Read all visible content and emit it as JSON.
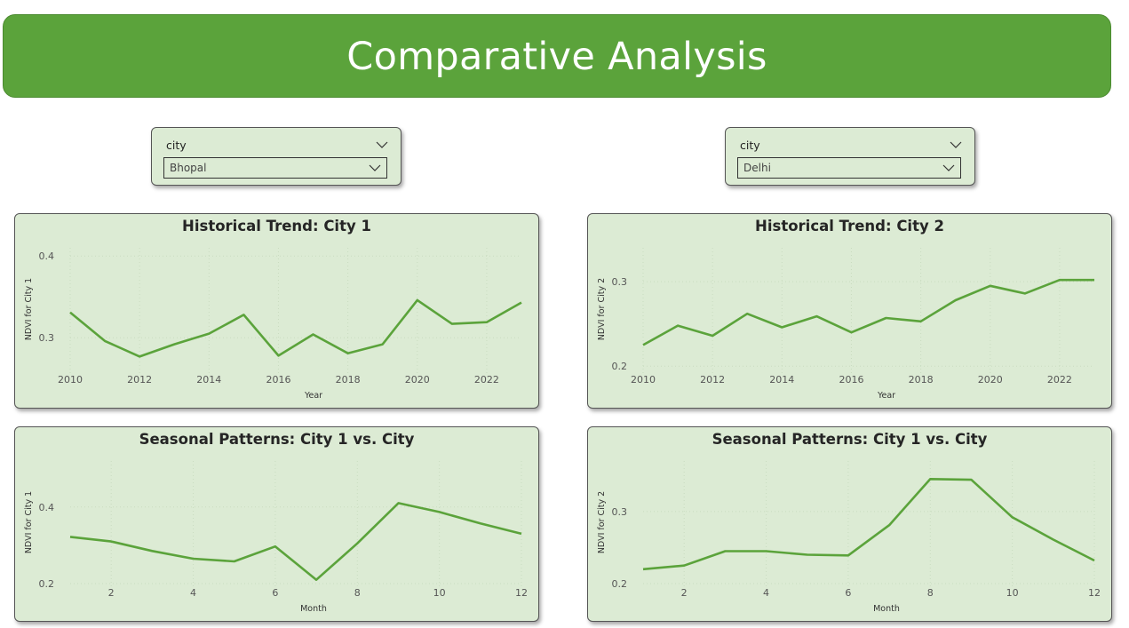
{
  "header": {
    "title": "Comparative Analysis"
  },
  "slicers": [
    {
      "label": "city",
      "value": "Bhopal"
    },
    {
      "label": "city",
      "value": "Delhi"
    }
  ],
  "colors": {
    "banner": "#5ba33b",
    "panel": "#dcebd4",
    "line": "#5ba33b"
  },
  "icons": {
    "dropdown": "chevron-down-icon"
  },
  "chart_data": [
    {
      "type": "line",
      "title": "Historical Trend: City 1",
      "xlabel": "Year",
      "ylabel": "NDVI for City 1",
      "x": [
        2010,
        2011,
        2012,
        2013,
        2014,
        2015,
        2016,
        2017,
        2018,
        2019,
        2020,
        2021,
        2022,
        2023
      ],
      "values": [
        0.331,
        0.296,
        0.277,
        0.292,
        0.305,
        0.328,
        0.278,
        0.304,
        0.281,
        0.292,
        0.346,
        0.317,
        0.319,
        0.343
      ],
      "ylim": [
        0.26,
        0.41
      ],
      "yticks": [
        0.3,
        0.4
      ],
      "xticks": [
        2010,
        2012,
        2014,
        2016,
        2018,
        2020,
        2022
      ],
      "grid": true
    },
    {
      "type": "line",
      "title": "Historical Trend: City 2",
      "xlabel": "Year",
      "ylabel": "NDVI for City 2",
      "x": [
        2010,
        2011,
        2012,
        2013,
        2014,
        2015,
        2016,
        2017,
        2018,
        2019,
        2020,
        2021,
        2022,
        2023
      ],
      "values": [
        0.225,
        0.248,
        0.236,
        0.262,
        0.246,
        0.259,
        0.24,
        0.257,
        0.253,
        0.278,
        0.295,
        0.286,
        0.302,
        0.302
      ],
      "ylim": [
        0.195,
        0.34
      ],
      "yticks": [
        0.2,
        0.3
      ],
      "xticks": [
        2010,
        2012,
        2014,
        2016,
        2018,
        2020,
        2022
      ],
      "grid": true
    },
    {
      "type": "line",
      "title": "Seasonal Patterns: City 1 vs. City",
      "xlabel": "Month",
      "ylabel": "NDVI for City 1",
      "x": [
        1,
        2,
        3,
        4,
        5,
        6,
        7,
        8,
        9,
        10,
        11,
        12
      ],
      "values": [
        0.322,
        0.31,
        0.285,
        0.265,
        0.258,
        0.297,
        0.21,
        0.305,
        0.41,
        0.387,
        0.357,
        0.33
      ],
      "ylim": [
        0.2,
        0.52
      ],
      "yticks": [
        0.2,
        0.4
      ],
      "xticks": [
        2,
        4,
        6,
        8,
        10,
        12
      ],
      "grid": true
    },
    {
      "type": "line",
      "title": "Seasonal Patterns: City 1 vs. City",
      "xlabel": "Month",
      "ylabel": "NDVI for City 2",
      "x": [
        1,
        2,
        3,
        4,
        5,
        6,
        7,
        8,
        9,
        10,
        11,
        12
      ],
      "values": [
        0.22,
        0.225,
        0.245,
        0.245,
        0.24,
        0.239,
        0.281,
        0.345,
        0.344,
        0.292,
        0.261,
        0.232
      ],
      "ylim": [
        0.2,
        0.37
      ],
      "yticks": [
        0.2,
        0.3
      ],
      "xticks": [
        2,
        4,
        6,
        8,
        10,
        12
      ],
      "grid": true
    }
  ]
}
